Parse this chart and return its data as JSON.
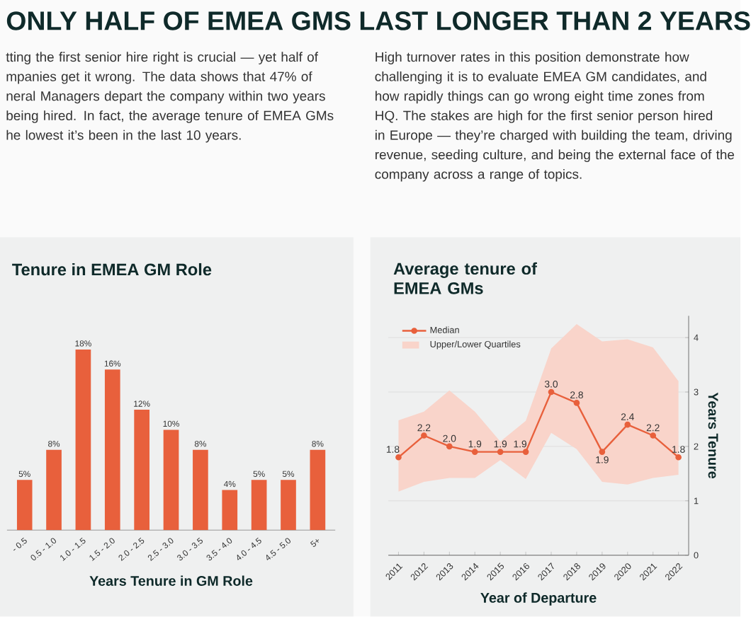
{
  "chart_data": [
    {
      "type": "other",
      "title": "ONLY HALF OF EMEA GMS LAST LONGER THAN 2 YEARS",
      "annotations": [
        "tting the first senior hire right is crucial — yet half of mpanies get it wrong. The data shows that 47% of neral Managers depart the company within two years being hired. In fact, the average tenure of EMEA GMs he lowest it’s been in the last 10 years.",
        "High turnover rates in this position demonstrate how challenging it is to evaluate EMEA GM candidates, and how rapidly things can go wrong eight time zones from HQ. The stakes are high for the first senior person hired in Europe — they’re charged with building the team, driving revenue, seeding culture, and being the external face of the company across a range of topics."
      ]
    },
    {
      "type": "bar",
      "title": "Tenure in EMEA GM Role",
      "xlabel": "Years Tenure in GM Role",
      "categories": [
        "- 0.5",
        "0.5 - 1.0",
        "1.0 - 1.5",
        "1.5 - 2.0",
        "2.0 - 2.5",
        "2.5 - 3.0",
        "3.0 - 3.5",
        "3.5 - 4.0",
        "4.0 - 4.5",
        "4.5 - 5.0",
        "5+"
      ],
      "values": [
        5,
        8,
        18,
        16,
        12,
        10,
        8,
        4,
        5,
        5,
        8
      ],
      "value_labels": [
        "5%",
        "8%",
        "18%",
        "16%",
        "12%",
        "10%",
        "8%",
        "4%",
        "5%",
        "5%",
        "8%"
      ],
      "color": "#e8603c"
    },
    {
      "type": "line",
      "title": "Average tenure of EMEA GMs",
      "xlabel": "Year of Departure",
      "ylabel": "Years Tenure",
      "categories": [
        "2011",
        "2012",
        "2013",
        "2014",
        "2015",
        "2016",
        "2017",
        "2018",
        "2019",
        "2020",
        "2021",
        "2022"
      ],
      "series": [
        {
          "name": "Median",
          "color": "#e8603c",
          "values": [
            1.8,
            2.2,
            2.0,
            1.9,
            1.9,
            1.9,
            3.0,
            2.8,
            1.9,
            2.4,
            2.2,
            1.8
          ],
          "value_labels": [
            "1.8",
            "2.2",
            "2.0",
            "1.9",
            "1.9",
            "1.9",
            "3.0",
            "2.8",
            "1.9",
            "2.4",
            "2.2",
            "1.8"
          ],
          "lower": [
            1.17,
            1.35,
            1.42,
            1.42,
            1.75,
            1.4,
            2.25,
            1.95,
            1.35,
            1.3,
            1.42,
            1.48
          ],
          "upper": [
            2.48,
            2.64,
            3.03,
            2.64,
            2.09,
            2.47,
            3.8,
            4.25,
            3.93,
            3.97,
            3.82,
            3.2
          ]
        }
      ],
      "annotations": [
        "Upper/Lower Quartiles"
      ],
      "ylim": [
        0,
        4.4
      ],
      "yticks": [
        0,
        1,
        2,
        3,
        4
      ],
      "grid": "y",
      "legend": "top left",
      "marker": "circle"
    }
  ]
}
